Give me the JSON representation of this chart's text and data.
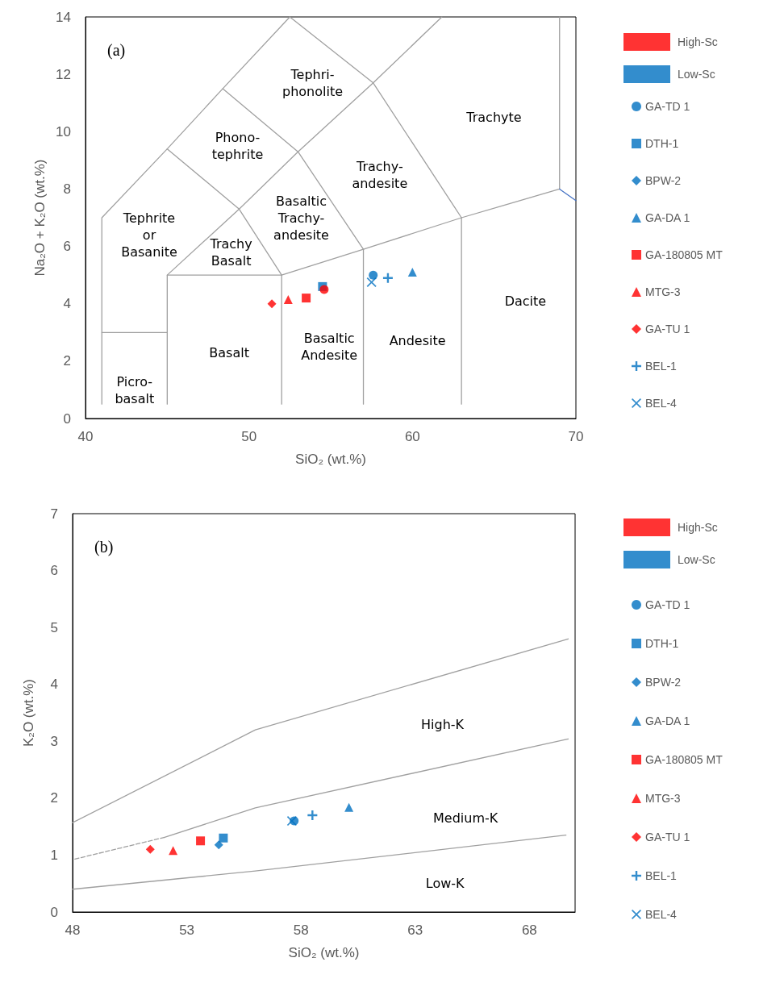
{
  "chart_data": [
    {
      "type": "scatter",
      "title": "(a)",
      "xlabel": "SiO₂ (wt.%)",
      "ylabel": "Na₂O + K₂O (wt.%)",
      "xlim": [
        40,
        70
      ],
      "ylim": [
        0,
        14
      ],
      "xticks": [
        40,
        50,
        60,
        70
      ],
      "yticks": [
        0,
        2,
        4,
        6,
        8,
        10,
        12,
        14
      ],
      "grid": false,
      "legend": "right",
      "annotations": [
        "Tephri-\nphonolite",
        "Phono-\ntephrite",
        "Trachyte",
        "Trachy-\nandesite",
        "Tephrite\nor\nBasanite",
        "Basaltic\nTrachy-\nandesite",
        "Trachy\nBasalt",
        "Dacite",
        "Andesite",
        "Basaltic\nAndesite",
        "Basalt",
        "Picro-\nbasalt"
      ],
      "series": [
        {
          "name": "High-Sc",
          "color": "#ff0000"
        },
        {
          "name": "Low-Sc",
          "color": "#0070c0"
        },
        {
          "name": "GA-TD 1",
          "color": "#0070c0",
          "marker": "circle",
          "x": [
            57.6
          ],
          "values": [
            5.0
          ]
        },
        {
          "name": "DTH-1",
          "color": "#0070c0",
          "marker": "square",
          "x": [
            54.5
          ],
          "values": [
            4.6
          ]
        },
        {
          "name": "BPW-2",
          "color": "#0070c0",
          "marker": "diamond",
          "x": [
            null
          ],
          "values": [
            null
          ]
        },
        {
          "name": "GA-DA 1",
          "color": "#0070c0",
          "marker": "triangle",
          "x": [
            60.0
          ],
          "values": [
            5.1
          ]
        },
        {
          "name": "GA-180805 MT",
          "color": "#ff0000",
          "marker": "square",
          "x": [
            53.5
          ],
          "values": [
            4.2
          ]
        },
        {
          "name": "MTG-3",
          "color": "#ff0000",
          "marker": "triangle",
          "x": [
            52.4
          ],
          "values": [
            4.15
          ]
        },
        {
          "name": "GA-TU 1",
          "color": "#ff0000",
          "marker": "diamond",
          "x": [
            51.4
          ],
          "values": [
            4.0
          ]
        },
        {
          "name": "BEL-1",
          "color": "#0070c0",
          "marker": "cross",
          "x": [
            58.5
          ],
          "values": [
            4.9
          ]
        },
        {
          "name": "BEL-4",
          "color": "#0070c0",
          "marker": "x",
          "x": [
            57.5
          ],
          "values": [
            4.75
          ]
        },
        {
          "color": "#ff0000",
          "marker": "circle",
          "x": [
            54.6
          ],
          "values": [
            4.5
          ]
        },
        {
          "type": "line",
          "color": "#a0a0a0",
          "x": [
            41,
            41,
            45,
            48.4,
            52.5
          ],
          "values": [
            0.5,
            7,
            9.4,
            11.5,
            14
          ]
        },
        {
          "type": "line",
          "color": "#a0a0a0",
          "x": [
            41,
            45
          ],
          "values": [
            3,
            3
          ]
        },
        {
          "type": "line",
          "color": "#a0a0a0",
          "x": [
            45,
            45,
            52,
            52
          ],
          "values": [
            0.5,
            5,
            5,
            0.5
          ]
        },
        {
          "type": "line",
          "color": "#a0a0a0",
          "x": [
            45,
            49.4,
            53,
            57.6,
            61.8
          ],
          "values": [
            5,
            7.3,
            9.3,
            11.7,
            14
          ]
        },
        {
          "type": "line",
          "color": "#a0a0a0",
          "x": [
            45,
            49.4,
            52
          ],
          "values": [
            9.4,
            7.3,
            5
          ]
        },
        {
          "type": "line",
          "color": "#a0a0a0",
          "x": [
            48.4,
            53,
            57
          ],
          "values": [
            11.5,
            9.3,
            5.9
          ]
        },
        {
          "type": "line",
          "color": "#a0a0a0",
          "x": [
            52.5,
            57.6,
            63
          ],
          "values": [
            14,
            11.7,
            7
          ]
        },
        {
          "type": "line",
          "color": "#a0a0a0",
          "x": [
            52,
            57,
            63,
            69
          ],
          "values": [
            5,
            5.9,
            7,
            8
          ]
        },
        {
          "type": "line",
          "color": "#a0a0a0",
          "x": [
            57,
            57
          ],
          "values": [
            5.9,
            0.5
          ]
        },
        {
          "type": "line",
          "color": "#a0a0a0",
          "x": [
            63,
            63
          ],
          "values": [
            7,
            0.5
          ]
        },
        {
          "type": "line",
          "color": "#a0a0a0",
          "x": [
            69,
            69
          ],
          "values": [
            8,
            14
          ]
        },
        {
          "type": "line",
          "color": "#4472c4",
          "x": [
            69,
            70
          ],
          "values": [
            8,
            7.6
          ]
        }
      ]
    },
    {
      "type": "scatter",
      "title": "(b)",
      "xlabel": "SiO₂ (wt.%)",
      "ylabel": "K₂O (wt.%)",
      "xlim": [
        48,
        70
      ],
      "ylim": [
        0,
        7
      ],
      "xticks": [
        48,
        53,
        58,
        63,
        68
      ],
      "yticks": [
        0,
        1,
        2,
        3,
        4,
        5,
        6,
        7
      ],
      "grid": false,
      "legend": "right",
      "annotations": [
        "High-K",
        "Medium-K",
        "Low-K"
      ],
      "series": [
        {
          "name": "High-Sc",
          "color": "#ff0000"
        },
        {
          "name": "Low-Sc",
          "color": "#0070c0"
        },
        {
          "name": "GA-TD 1",
          "color": "#0070c0",
          "marker": "circle",
          "x": [
            57.7
          ],
          "values": [
            1.6
          ]
        },
        {
          "name": "DTH-1",
          "color": "#0070c0",
          "marker": "square",
          "x": [
            54.6
          ],
          "values": [
            1.3
          ]
        },
        {
          "name": "BPW-2",
          "color": "#0070c0",
          "marker": "diamond",
          "x": [
            54.4
          ],
          "values": [
            1.18
          ]
        },
        {
          "name": "GA-DA 1",
          "color": "#0070c0",
          "marker": "triangle",
          "x": [
            60.1
          ],
          "values": [
            1.84
          ]
        },
        {
          "name": "GA-180805 MT",
          "color": "#ff0000",
          "marker": "square",
          "x": [
            53.6
          ],
          "values": [
            1.25
          ]
        },
        {
          "name": "MTG-3",
          "color": "#ff0000",
          "marker": "triangle",
          "x": [
            52.4
          ],
          "values": [
            1.08
          ]
        },
        {
          "name": "GA-TU 1",
          "color": "#ff0000",
          "marker": "diamond",
          "x": [
            51.4
          ],
          "values": [
            1.1
          ]
        },
        {
          "name": "BEL-1",
          "color": "#0070c0",
          "marker": "cross",
          "x": [
            58.5
          ],
          "values": [
            1.7
          ]
        },
        {
          "name": "BEL-4",
          "color": "#0070c0",
          "marker": "x",
          "x": [
            57.6
          ],
          "values": [
            1.6
          ]
        },
        {
          "type": "line",
          "color": "#a0a0a0",
          "x": [
            48,
            56,
            69.7
          ],
          "values": [
            1.57,
            3.2,
            4.8
          ]
        },
        {
          "type": "line",
          "color": "#a0a0a0",
          "line_style": "dashed",
          "x": [
            48.1,
            52
          ],
          "values": [
            0.93,
            1.31
          ]
        },
        {
          "type": "line",
          "color": "#a0a0a0",
          "x": [
            52,
            56,
            69.7
          ],
          "values": [
            1.31,
            1.83,
            3.04
          ]
        },
        {
          "type": "line",
          "color": "#a0a0a0",
          "x": [
            48,
            56,
            69.6
          ],
          "values": [
            0.4,
            0.72,
            1.35
          ]
        }
      ]
    }
  ]
}
